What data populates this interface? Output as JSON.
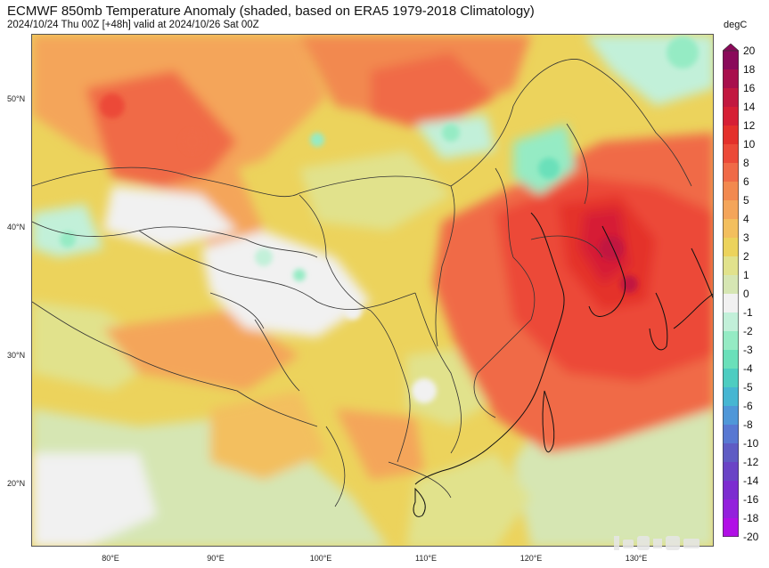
{
  "title": "ECMWF 850mb Temperature Anomaly (shaded, based on ERA5 1979-2018 Climatology)",
  "subtitle": "2024/10/24 Thu 00Z [+48h] valid at 2024/10/26 Sat 00Z",
  "unit": "degC",
  "lat_labels": [
    "50°N",
    "40°N",
    "30°N",
    "20°N"
  ],
  "lon_labels": [
    "80°E",
    "90°E",
    "100°E",
    "110°E",
    "120°E",
    "130°E"
  ],
  "colorbar": {
    "labels": [
      "20",
      "18",
      "16",
      "14",
      "12",
      "10",
      "8",
      "6",
      "5",
      "4",
      "3",
      "2",
      "1",
      "0",
      "-1",
      "-2",
      "-3",
      "-4",
      "-5",
      "-6",
      "-8",
      "-10",
      "-12",
      "-14",
      "-16",
      "-18",
      "-20"
    ],
    "colors": [
      "#8a0a5a",
      "#a80f4d",
      "#c21840",
      "#d61f35",
      "#e4302b",
      "#ec4a38",
      "#f06a47",
      "#f2894f",
      "#f4a55a",
      "#f3bf5e",
      "#ecd35c",
      "#e1e28c",
      "#d6e6b3",
      "#f1f1f1",
      "#c2f0d9",
      "#95ebc4",
      "#6ae0ba",
      "#4dcdc1",
      "#46b6d2",
      "#4f97d8",
      "#5878d2",
      "#5f5cc4",
      "#6a44c6",
      "#7c2cd0",
      "#9320dc",
      "#b10fe6",
      "#d100f0"
    ]
  },
  "map": {
    "region": "China and surrounding East Asia",
    "lat_range": [
      15,
      55
    ],
    "lon_range": [
      73,
      138
    ],
    "notes": "Warm anomalies (+6 to +12 degC) over northeastern China, Korea and the Yellow Sea; mostly +1 to +5 over the rest of China; small negative (-1 to -2) patches over northeast Inner Mongolia, western Xinjiang and the Tibetan Plateau."
  },
  "colors": {
    "coast": "#111111",
    "border": "#333333",
    "frame": "#555555"
  }
}
